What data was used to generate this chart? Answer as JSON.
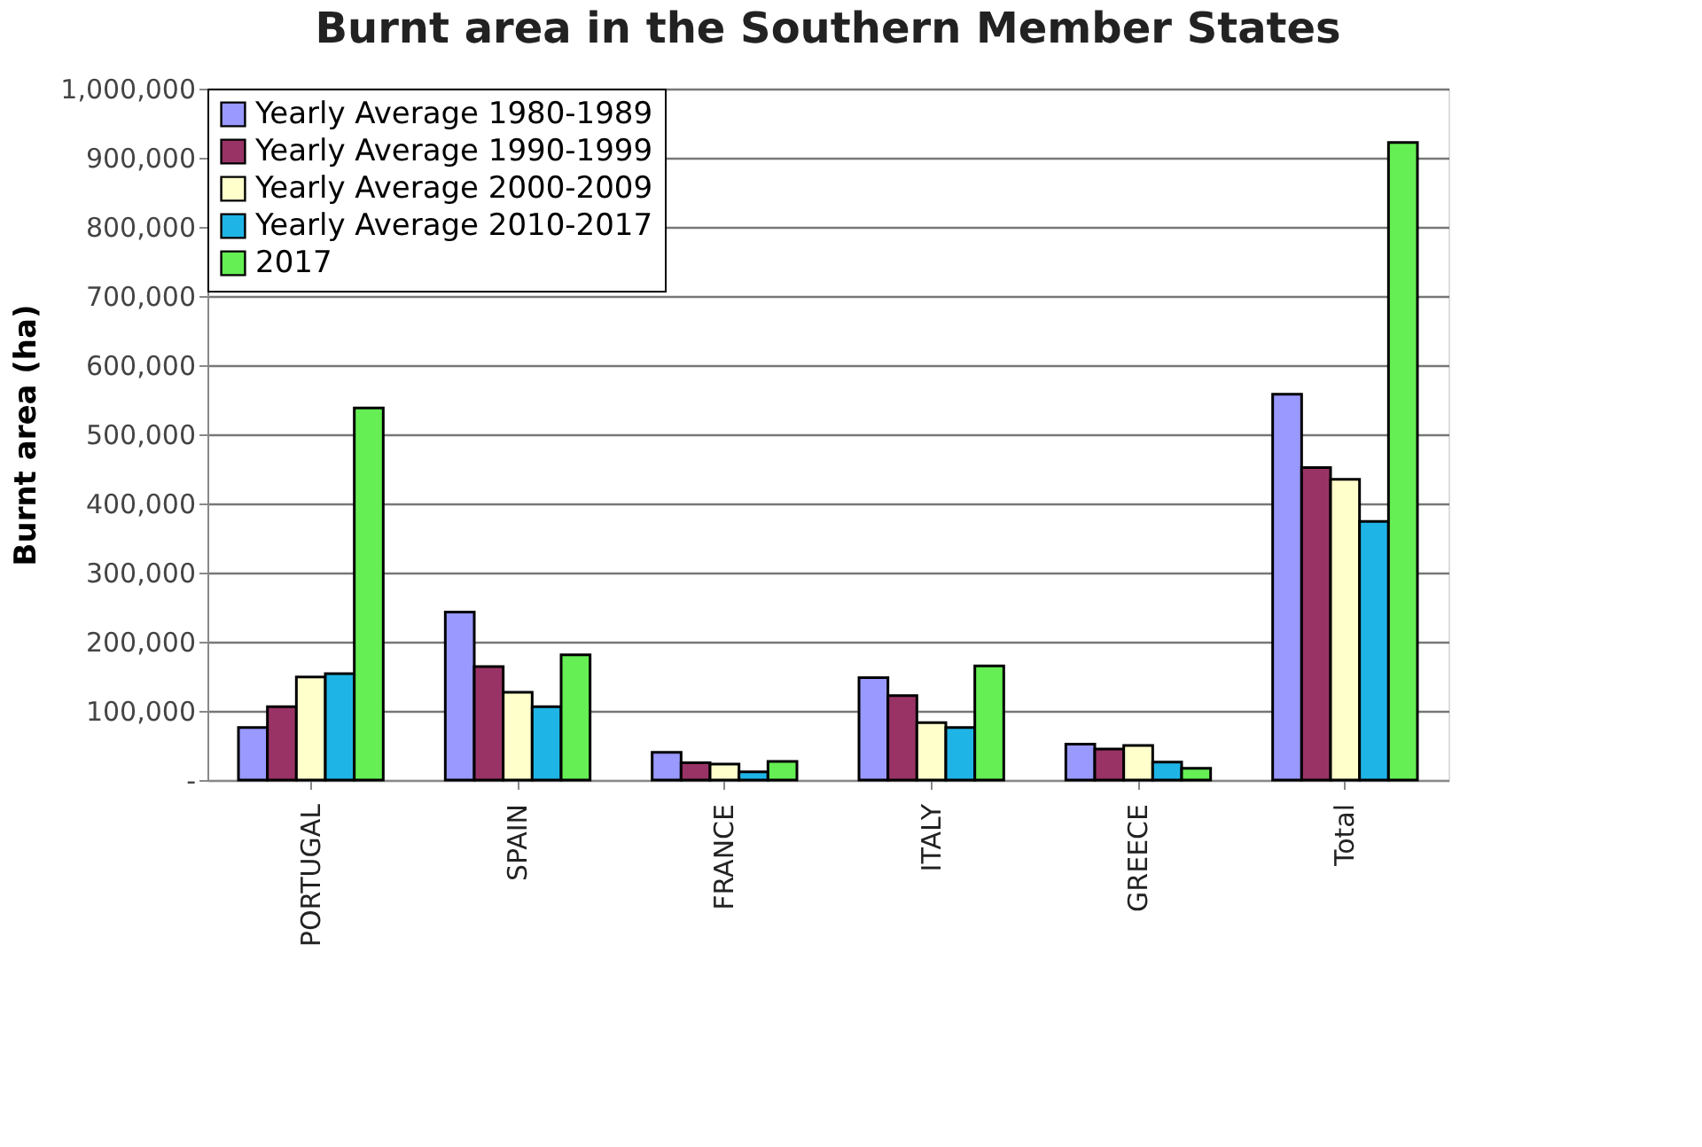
{
  "chart_data": {
    "type": "bar",
    "title": "Burnt area in the Southern Member States",
    "ylabel": "Burnt area (ha)",
    "categories": [
      "PORTUGAL",
      "SPAIN",
      "FRANCE",
      "ITALY",
      "GREECE",
      "Total"
    ],
    "series": [
      {
        "name": "Yearly Average 1980-1989",
        "color": "#9999ff",
        "values": [
          76000,
          243000,
          40000,
          148000,
          52000,
          558000
        ]
      },
      {
        "name": "Yearly Average 1990-1999",
        "color": "#993366",
        "values": [
          106000,
          164000,
          25000,
          122000,
          45000,
          452000
        ]
      },
      {
        "name": "Yearly Average 2000-2009",
        "color": "#ffffcc",
        "values": [
          149000,
          127000,
          23000,
          83000,
          50000,
          435000
        ]
      },
      {
        "name": "Yearly Average 2010-2017",
        "color": "#1fb4e6",
        "values": [
          154000,
          106000,
          12000,
          76000,
          26000,
          374000
        ]
      },
      {
        "name": "2017",
        "color": "#66ee55",
        "values": [
          538000,
          181000,
          27000,
          165000,
          17000,
          922000
        ]
      }
    ],
    "ylim": [
      0,
      1000000
    ],
    "yticks": [
      {
        "value": 0,
        "label": "-"
      },
      {
        "value": 100000,
        "label": "100,000"
      },
      {
        "value": 200000,
        "label": "200,000"
      },
      {
        "value": 300000,
        "label": "300,000"
      },
      {
        "value": 400000,
        "label": "400,000"
      },
      {
        "value": 500000,
        "label": "500,000"
      },
      {
        "value": 600000,
        "label": "600,000"
      },
      {
        "value": 700000,
        "label": "700,000"
      },
      {
        "value": 800000,
        "label": "800,000"
      },
      {
        "value": 900000,
        "label": "900,000"
      },
      {
        "value": 1000000,
        "label": "1,000,000"
      }
    ],
    "grid": "y",
    "legend": "top left"
  }
}
